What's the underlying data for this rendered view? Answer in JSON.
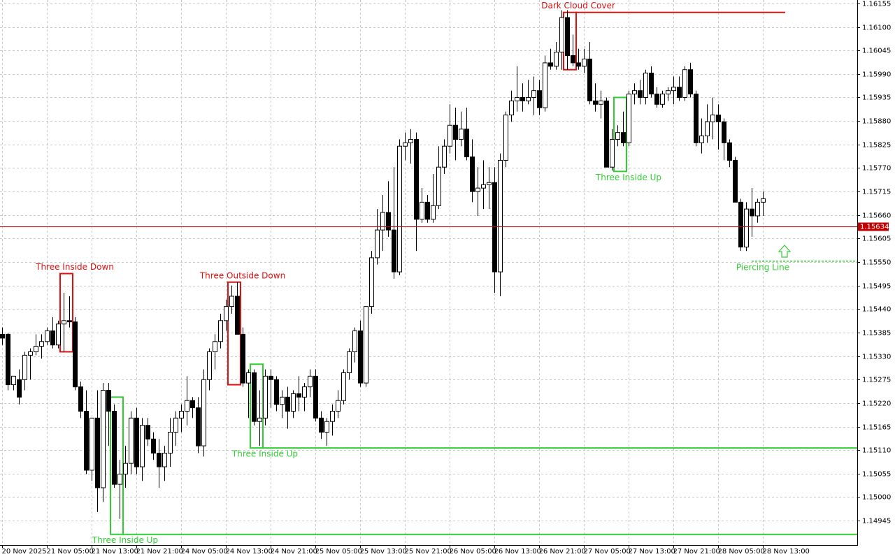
{
  "chart_data": {
    "type": "candlestick",
    "categories": [
      "20 Nov 2025",
      null,
      null,
      null,
      null,
      null,
      null,
      null,
      "21 Nov 05:00",
      null,
      null,
      null,
      null,
      null,
      null,
      null,
      "21 Nov 13:00",
      null,
      null,
      null,
      null,
      null,
      null,
      null,
      "21 Nov 21:00",
      null,
      null,
      null,
      null,
      null,
      null,
      null,
      "24 Nov 05:00",
      null,
      null,
      null,
      null,
      null,
      null,
      null,
      "24 Nov 13:00",
      null,
      null,
      null,
      null,
      null,
      null,
      null,
      "24 Nov 21:00",
      null,
      null,
      null,
      null,
      null,
      null,
      null,
      "25 Nov 05:00",
      null,
      null,
      null,
      null,
      null,
      null,
      null,
      "25 Nov 13:00",
      null,
      null,
      null,
      null,
      null,
      null,
      null,
      "25 Nov 21:00",
      null,
      null,
      null,
      null,
      null,
      null,
      null,
      "26 Nov 05:00",
      null,
      null,
      null,
      null,
      null,
      null,
      null,
      "26 Nov 13:00",
      null,
      null,
      null,
      null,
      null,
      null,
      null,
      "26 Nov 21:00",
      null,
      null,
      null,
      null,
      null,
      null,
      null,
      "27 Nov 05:00",
      null,
      null,
      null,
      null,
      null,
      null,
      null,
      "27 Nov 13:00",
      null,
      null,
      null,
      null,
      null,
      null,
      null,
      "27 Nov 21:00",
      null,
      null,
      null,
      null,
      null,
      null,
      null,
      "28 Nov 05:00",
      null,
      null,
      null,
      null,
      null,
      null,
      null,
      "28 Nov 13:00"
    ],
    "open": [
      1.15381,
      1.15381,
      1.15263,
      1.15275,
      1.15275,
      1.15332,
      1.1534,
      1.15353,
      1.15364,
      1.15389,
      1.15356,
      1.15405,
      1.15413,
      1.1541,
      1.15258,
      1.15201,
      1.15063,
      1.15185,
      1.15022,
      1.1525,
      1.15201,
      1.1503,
      1.15054,
      1.15079,
      1.15185,
      1.15071,
      1.15168,
      1.15136,
      1.15103,
      1.15071,
      1.15103,
      1.15152,
      1.15185,
      1.15201,
      1.15226,
      1.15209,
      1.1512,
      1.15275,
      1.1534,
      1.15364,
      1.15413,
      1.15446,
      1.1547,
      1.15381,
      1.15267,
      1.15291,
      1.15177,
      1.15185,
      1.15283,
      1.15275,
      1.15217,
      1.15234,
      1.15201,
      1.15242,
      1.15234,
      1.15258,
      1.15283,
      1.15185,
      1.15152,
      1.15177,
      1.15201,
      1.15226,
      1.15291,
      1.1534,
      1.15389,
      1.15267,
      1.15446,
      1.1556,
      1.15625,
      1.15666,
      1.15625,
      1.15527,
      1.15821,
      1.15829,
      1.15837,
      1.1565,
      1.1569,
      1.1565,
      1.15682,
      1.15772,
      1.15821,
      1.1587,
      1.15837,
      1.15861,
      1.15796,
      1.15715,
      1.15723,
      1.15731,
      1.15736,
      1.15527,
      1.15788,
      1.15894,
      1.15927,
      1.15935,
      1.15927,
      1.15935,
      1.15951,
      1.15911,
      1.16016,
      1.16008,
      1.16041,
      1.16122,
      1.16033,
      1.16016,
      1.16008,
      1.16025,
      1.15927,
      1.15919,
      1.15927,
      1.15772,
      1.15837,
      1.15853,
      1.15829,
      1.15943,
      1.15951,
      1.15935,
      1.15992,
      1.15943,
      1.15919,
      1.15943,
      1.15951,
      1.15959,
      1.15935,
      1.16,
      1.15943,
      1.15829,
      1.15845,
      1.15878,
      1.15894,
      1.15878,
      1.15829,
      1.15788,
      1.1569,
      1.15585,
      1.15674,
      1.15658,
      1.1569
    ],
    "high": [
      1.15397,
      1.15384,
      1.15283,
      1.15299,
      1.1534,
      1.15348,
      1.15381,
      1.15381,
      1.15397,
      1.15421,
      1.15413,
      1.15478,
      1.1547,
      1.15421,
      1.1527,
      1.1525,
      1.15185,
      1.1525,
      1.15267,
      1.15267,
      1.15217,
      1.15087,
      1.1512,
      1.15201,
      1.15209,
      1.15185,
      1.15185,
      1.15152,
      1.15136,
      1.1512,
      1.15185,
      1.15201,
      1.15217,
      1.15283,
      1.15234,
      1.15234,
      1.15299,
      1.15348,
      1.15381,
      1.15429,
      1.15462,
      1.15495,
      1.15503,
      1.15397,
      1.15299,
      1.15299,
      1.1525,
      1.15299,
      1.15299,
      1.15283,
      1.1525,
      1.15258,
      1.1525,
      1.15283,
      1.15267,
      1.15299,
      1.15299,
      1.15201,
      1.15185,
      1.15217,
      1.1525,
      1.15299,
      1.15348,
      1.15397,
      1.15413,
      1.15446,
      1.15576,
      1.15674,
      1.15707,
      1.15739,
      1.15772,
      1.15837,
      1.15853,
      1.15861,
      1.15853,
      1.15723,
      1.15707,
      1.15756,
      1.15821,
      1.15837,
      1.15919,
      1.15911,
      1.15902,
      1.15911,
      1.15837,
      1.15772,
      1.15788,
      1.15772,
      1.15772,
      1.15804,
      1.15902,
      1.15951,
      1.16008,
      1.15968,
      1.15976,
      1.15984,
      1.15976,
      1.16033,
      1.16049,
      1.16065,
      1.16139,
      1.16139,
      1.16082,
      1.16049,
      1.16049,
      1.16065,
      1.15968,
      1.15951,
      1.15935,
      1.15861,
      1.1587,
      1.15902,
      1.15951,
      1.15968,
      1.15976,
      1.16,
      1.16008,
      1.15959,
      1.15951,
      1.15959,
      1.15984,
      1.15984,
      1.16008,
      1.16016,
      1.15951,
      1.15886,
      1.15919,
      1.15935,
      1.15919,
      1.15886,
      1.15837,
      1.15796,
      1.15698,
      1.1569,
      1.15723,
      1.15698,
      1.15715
    ],
    "low": [
      1.15356,
      1.1525,
      1.1525,
      1.15217,
      1.1525,
      1.15275,
      1.15332,
      1.15324,
      1.15356,
      1.15348,
      1.15348,
      1.1534,
      1.15397,
      1.1525,
      1.15185,
      1.15054,
      1.15038,
      1.14965,
      1.14989,
      1.1512,
      1.15022,
      1.14949,
      1.15022,
      1.15054,
      1.15054,
      1.15038,
      1.1512,
      1.15087,
      1.15022,
      1.15038,
      1.15071,
      1.1512,
      1.15152,
      1.15168,
      1.15185,
      1.15103,
      1.15095,
      1.1525,
      1.15299,
      1.15348,
      1.15389,
      1.15429,
      1.15381,
      1.15258,
      1.15185,
      1.15168,
      1.1512,
      1.15168,
      1.15209,
      1.15201,
      1.15185,
      1.1516,
      1.15185,
      1.15201,
      1.15201,
      1.15234,
      1.15177,
      1.15136,
      1.1512,
      1.15144,
      1.15185,
      1.15217,
      1.15275,
      1.15315,
      1.15258,
      1.15258,
      1.15429,
      1.15544,
      1.15576,
      1.15609,
      1.15511,
      1.15519,
      1.15788,
      1.1578,
      1.15576,
      1.15642,
      1.15642,
      1.15642,
      1.15674,
      1.15756,
      1.15804,
      1.15788,
      1.15821,
      1.15788,
      1.1569,
      1.15658,
      1.15674,
      1.15674,
      1.15478,
      1.1547,
      1.15772,
      1.15878,
      1.15902,
      1.15902,
      1.15919,
      1.15894,
      1.15894,
      1.15902,
      1.16,
      1.16,
      1.16,
      1.16,
      1.16008,
      1.16,
      1.15992,
      1.15919,
      1.15902,
      1.15886,
      1.15772,
      1.15764,
      1.15821,
      1.15821,
      1.15821,
      1.15919,
      1.15919,
      1.15919,
      1.15935,
      1.15911,
      1.15911,
      1.15927,
      1.15919,
      1.15927,
      1.15927,
      1.15935,
      1.15821,
      1.15804,
      1.15829,
      1.15837,
      1.15813,
      1.15788,
      1.15772,
      1.1569,
      1.15576,
      1.15576,
      1.15609,
      1.15642,
      1.15658
    ],
    "close": [
      1.15372,
      1.15263,
      1.15283,
      1.15234,
      1.15332,
      1.1534,
      1.15353,
      1.15364,
      1.15389,
      1.15356,
      1.15405,
      1.15413,
      1.1541,
      1.15258,
      1.15201,
      1.15063,
      1.15185,
      1.15022,
      1.1525,
      1.15201,
      1.1503,
      1.15054,
      1.15079,
      1.15185,
      1.15071,
      1.15168,
      1.15136,
      1.15103,
      1.15071,
      1.15103,
      1.15152,
      1.15185,
      1.15201,
      1.15226,
      1.15209,
      1.1512,
      1.15275,
      1.1534,
      1.15364,
      1.15413,
      1.15446,
      1.1547,
      1.15381,
      1.15267,
      1.15291,
      1.15177,
      1.15185,
      1.15283,
      1.15275,
      1.15217,
      1.15234,
      1.15201,
      1.15242,
      1.15234,
      1.15258,
      1.15283,
      1.15185,
      1.15152,
      1.15177,
      1.15201,
      1.15226,
      1.15291,
      1.1534,
      1.15389,
      1.15267,
      1.15446,
      1.1556,
      1.15625,
      1.15666,
      1.15625,
      1.15527,
      1.15821,
      1.15829,
      1.15837,
      1.1565,
      1.1569,
      1.1565,
      1.15682,
      1.15772,
      1.15821,
      1.1587,
      1.15837,
      1.15861,
      1.15796,
      1.15715,
      1.15723,
      1.15731,
      1.15736,
      1.15527,
      1.15788,
      1.15894,
      1.15927,
      1.15935,
      1.15927,
      1.15935,
      1.15951,
      1.15911,
      1.16016,
      1.16008,
      1.16041,
      1.16122,
      1.16033,
      1.16016,
      1.16008,
      1.16025,
      1.15927,
      1.15919,
      1.15927,
      1.15772,
      1.15837,
      1.15853,
      1.15829,
      1.15943,
      1.15951,
      1.15935,
      1.15992,
      1.15943,
      1.15919,
      1.15943,
      1.15951,
      1.15959,
      1.15935,
      1.16,
      1.15943,
      1.15829,
      1.15845,
      1.15878,
      1.15894,
      1.15878,
      1.15829,
      1.15788,
      1.1569,
      1.15585,
      1.15674,
      1.15658,
      1.1569,
      1.15698
    ],
    "up_color": "#ffffff",
    "down_color": "#000000",
    "ylim": [
      1.14888,
      1.16163
    ],
    "yticks": [
      {
        "value": 1.16155,
        "label": "1.16155"
      },
      {
        "value": 1.161,
        "label": "1.16100"
      },
      {
        "value": 1.16045,
        "label": "1.16045"
      },
      {
        "value": 1.1599,
        "label": "1.15990"
      },
      {
        "value": 1.15935,
        "label": "1.15935"
      },
      {
        "value": 1.1588,
        "label": "1.15880"
      },
      {
        "value": 1.15825,
        "label": "1.15825"
      },
      {
        "value": 1.1577,
        "label": "1.15770"
      },
      {
        "value": 1.15715,
        "label": "1.15715"
      },
      {
        "value": 1.1566,
        "label": "1.15660"
      },
      {
        "value": 1.15605,
        "label": "1.15605"
      },
      {
        "value": 1.1555,
        "label": "1.15550"
      },
      {
        "value": 1.15495,
        "label": "1.15495"
      },
      {
        "value": 1.1544,
        "label": "1.15440"
      },
      {
        "value": 1.15385,
        "label": "1.15385"
      },
      {
        "value": 1.1533,
        "label": "1.15330"
      },
      {
        "value": 1.15275,
        "label": "1.15275"
      },
      {
        "value": 1.1522,
        "label": "1.15220"
      },
      {
        "value": 1.15165,
        "label": "1.15165"
      },
      {
        "value": 1.1511,
        "label": "1.15110"
      },
      {
        "value": 1.15055,
        "label": "1.15055"
      },
      {
        "value": 1.15,
        "label": "1.15000"
      },
      {
        "value": 1.14945,
        "label": "1.14945"
      }
    ],
    "grid": true,
    "bid": 1.15634,
    "bid_color": "#c00000",
    "patterns": [
      {
        "label": "Three Inside Down",
        "color": "#e01010",
        "from": 11,
        "to": 12,
        "top": 1.15523,
        "bottom": 1.1534,
        "label_position": "above"
      },
      {
        "label": "Three Inside Up",
        "color": "#33cc33",
        "from": 20,
        "to": 21,
        "top": 1.15234,
        "bottom": 1.14913,
        "level": 1.14913,
        "label_position": "below"
      },
      {
        "label": "Three Outside Down",
        "color": "#e01010",
        "from": 41,
        "to": 42,
        "top": 1.15503,
        "bottom": 1.15263,
        "label_position": "above"
      },
      {
        "label": "Three Inside Up",
        "color": "#33cc33",
        "from": 45,
        "to": 46,
        "top": 1.15311,
        "bottom": 1.15115,
        "level": 1.15115,
        "label_position": "below"
      },
      {
        "label": "Dark Cloud Cover",
        "color": "#e01010",
        "from": 101,
        "to": 102,
        "top": 1.16134,
        "bottom": 1.16,
        "level": 1.16134,
        "level_to": 140,
        "label_position": "above"
      },
      {
        "label": "Three Inside Up",
        "color": "#33cc33",
        "from": 110,
        "to": 111,
        "top": 1.15935,
        "bottom": 1.15762,
        "label_position": "below"
      },
      {
        "label": "Piercing Line",
        "color": "#33cc33",
        "from": 134,
        "to": 135,
        "level": 1.15552,
        "dashed": true,
        "label_position": "below"
      }
    ]
  }
}
